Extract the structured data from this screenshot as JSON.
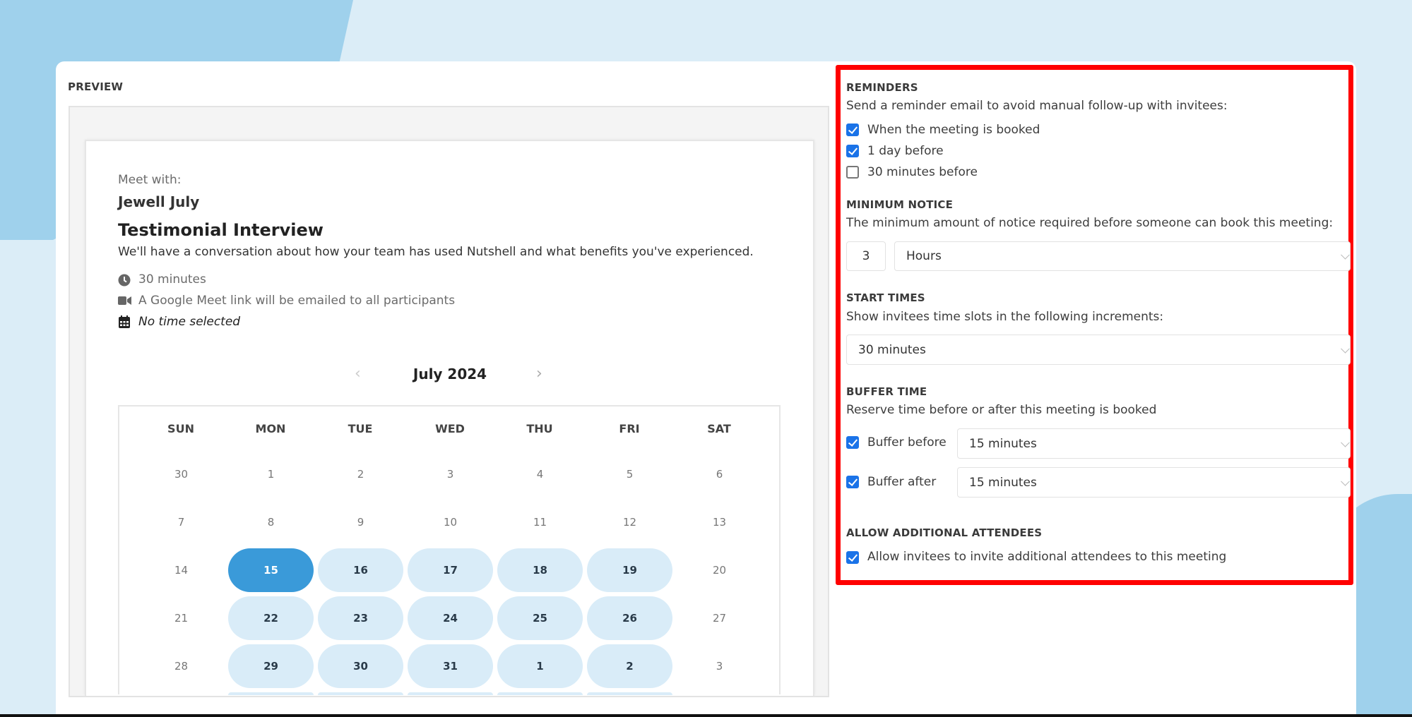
{
  "preview": {
    "label": "PREVIEW",
    "meet_with_label": "Meet with:",
    "host_name": "Jewell July",
    "event_title": "Testimonial Interview",
    "event_description": "We'll have a conversation about how your team has used Nutshell and what benefits you've experienced.",
    "duration": "30 minutes",
    "location": "A Google Meet link will be emailed to all participants",
    "selected_time": "No time selected",
    "calendar": {
      "month_label": "July 2024",
      "weekdays": [
        "SUN",
        "MON",
        "TUE",
        "WED",
        "THU",
        "FRI",
        "SAT"
      ],
      "weeks": [
        [
          {
            "d": "30",
            "s": "muted"
          },
          {
            "d": "1",
            "s": "muted"
          },
          {
            "d": "2",
            "s": "muted"
          },
          {
            "d": "3",
            "s": "muted"
          },
          {
            "d": "4",
            "s": "muted"
          },
          {
            "d": "5",
            "s": "muted"
          },
          {
            "d": "6",
            "s": "muted"
          }
        ],
        [
          {
            "d": "7",
            "s": "muted"
          },
          {
            "d": "8",
            "s": "muted"
          },
          {
            "d": "9",
            "s": "muted"
          },
          {
            "d": "10",
            "s": "muted"
          },
          {
            "d": "11",
            "s": "muted"
          },
          {
            "d": "12",
            "s": "muted"
          },
          {
            "d": "13",
            "s": "muted"
          }
        ],
        [
          {
            "d": "14",
            "s": "muted"
          },
          {
            "d": "15",
            "s": "selected"
          },
          {
            "d": "16",
            "s": "available"
          },
          {
            "d": "17",
            "s": "available"
          },
          {
            "d": "18",
            "s": "available"
          },
          {
            "d": "19",
            "s": "available"
          },
          {
            "d": "20",
            "s": "muted"
          }
        ],
        [
          {
            "d": "21",
            "s": "muted"
          },
          {
            "d": "22",
            "s": "available"
          },
          {
            "d": "23",
            "s": "available"
          },
          {
            "d": "24",
            "s": "available"
          },
          {
            "d": "25",
            "s": "available"
          },
          {
            "d": "26",
            "s": "available"
          },
          {
            "d": "27",
            "s": "muted"
          }
        ],
        [
          {
            "d": "28",
            "s": "muted"
          },
          {
            "d": "29",
            "s": "available"
          },
          {
            "d": "30",
            "s": "available"
          },
          {
            "d": "31",
            "s": "available"
          },
          {
            "d": "1",
            "s": "available"
          },
          {
            "d": "2",
            "s": "available"
          },
          {
            "d": "3",
            "s": "muted"
          }
        ]
      ]
    }
  },
  "settings": {
    "reminders": {
      "title": "REMINDERS",
      "description": "Send a reminder email to avoid manual follow-up with invitees:",
      "options": [
        {
          "label": "When the meeting is booked",
          "checked": true
        },
        {
          "label": "1 day before",
          "checked": true
        },
        {
          "label": "30 minutes before",
          "checked": false
        }
      ]
    },
    "minimum_notice": {
      "title": "MINIMUM NOTICE",
      "description": "The minimum amount of notice required before someone can book this meeting:",
      "amount": "3",
      "unit": "Hours"
    },
    "start_times": {
      "title": "START TIMES",
      "description": "Show invitees time slots in the following increments:",
      "increment": "30 minutes"
    },
    "buffer_time": {
      "title": "BUFFER TIME",
      "description": "Reserve time before or after this meeting is booked",
      "before_label": "Buffer before",
      "before_checked": true,
      "before_value": "15 minutes",
      "after_label": "Buffer after",
      "after_checked": true,
      "after_value": "15 minutes"
    },
    "additional_attendees": {
      "title": "ALLOW ADDITIONAL ATTENDEES",
      "label": "Allow invitees to invite additional attendees to this meeting",
      "checked": true
    }
  },
  "colors": {
    "highlight": "#ff0000",
    "selected_day": "#3a9ad9",
    "available_day": "#d9ecf8",
    "checkbox": "#1a73e8"
  }
}
